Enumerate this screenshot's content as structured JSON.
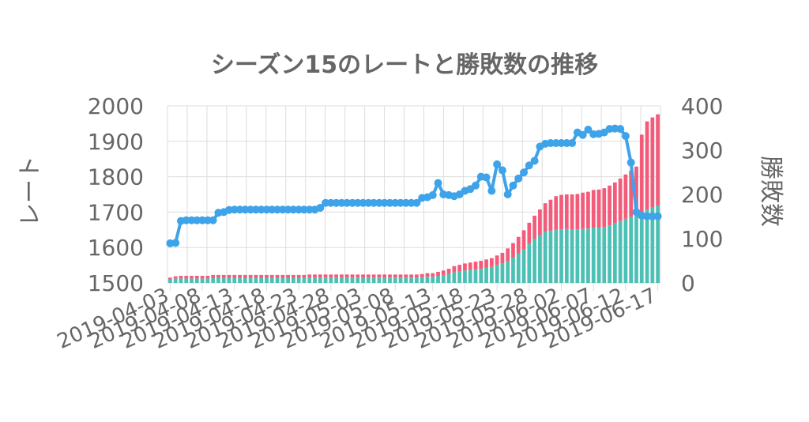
{
  "chart_data": {
    "type": "bar+line",
    "title": "シーズン15のレートと勝敗数の推移",
    "y_left_label": "レート",
    "y_right_label": "勝敗数",
    "y_left_range": [
      1500,
      2000
    ],
    "y_left_ticks": [
      1500,
      1600,
      1700,
      1800,
      1900,
      2000
    ],
    "y_right_range": [
      0,
      400
    ],
    "y_right_ticks": [
      0,
      100,
      200,
      300,
      400
    ],
    "grid": true,
    "bars_stacked": true,
    "x_tick_labels": [
      "2019-04-03",
      "2019-04-08",
      "2019-04-13",
      "2019-04-18",
      "2019-04-23",
      "2019-04-28",
      "2019-05-03",
      "2019-05-08",
      "2019-05-13",
      "2019-05-18",
      "2019-05-23",
      "2019-05-28",
      "2019-06-02",
      "2019-06-07",
      "2019-06-12",
      "2019-06-17"
    ],
    "colors": {
      "wins": "#4dc0b5",
      "losses": "#f25c7a",
      "rate": "#3ea3e8",
      "grid": "#dddddd",
      "text": "#666666"
    },
    "wins": [
      8,
      10,
      10,
      10,
      10,
      10,
      10,
      10,
      11,
      11,
      11,
      11,
      11,
      11,
      11,
      11,
      11,
      11,
      11,
      11,
      11,
      11,
      11,
      11,
      11,
      11,
      12,
      12,
      12,
      12,
      12,
      12,
      12,
      12,
      12,
      12,
      12,
      12,
      12,
      12,
      12,
      12,
      12,
      12,
      12,
      12,
      12,
      13,
      14,
      14,
      16,
      18,
      20,
      24,
      26,
      28,
      29,
      30,
      32,
      34,
      36,
      40,
      44,
      50,
      58,
      66,
      76,
      88,
      100,
      108,
      116,
      118,
      120,
      121,
      122,
      120,
      121,
      122,
      123,
      125,
      125,
      126,
      130,
      135,
      140,
      145,
      150,
      155,
      160,
      165,
      170,
      175
    ],
    "losses": [
      4,
      5,
      6,
      6,
      6,
      6,
      6,
      6,
      7,
      7,
      7,
      7,
      7,
      7,
      7,
      7,
      7,
      7,
      7,
      7,
      7,
      7,
      7,
      7,
      7,
      7,
      7,
      7,
      7,
      7,
      7,
      7,
      7,
      7,
      7,
      7,
      7,
      7,
      7,
      7,
      7,
      7,
      7,
      7,
      7,
      7,
      7,
      7,
      8,
      8,
      9,
      10,
      12,
      14,
      15,
      16,
      17,
      18,
      18,
      19,
      20,
      22,
      24,
      28,
      32,
      38,
      43,
      48,
      52,
      58,
      64,
      70,
      76,
      78,
      78,
      80,
      80,
      82,
      83,
      85,
      86,
      88,
      90,
      92,
      96,
      100,
      104,
      108,
      175,
      200,
      204,
      206
    ],
    "rate": [
      1612,
      1613,
      1675,
      1677,
      1677,
      1677,
      1677,
      1677,
      1677,
      1698,
      1700,
      1706,
      1707,
      1707,
      1707,
      1707,
      1707,
      1707,
      1707,
      1707,
      1707,
      1707,
      1707,
      1707,
      1707,
      1707,
      1707,
      1707,
      1712,
      1726,
      1726,
      1726,
      1726,
      1726,
      1726,
      1726,
      1726,
      1726,
      1726,
      1726,
      1726,
      1726,
      1726,
      1726,
      1726,
      1726,
      1726,
      1740,
      1742,
      1748,
      1782,
      1750,
      1748,
      1745,
      1750,
      1760,
      1765,
      1775,
      1800,
      1798,
      1760,
      1835,
      1818,
      1750,
      1775,
      1795,
      1812,
      1832,
      1845,
      1885,
      1893,
      1895,
      1895,
      1895,
      1895,
      1895,
      1925,
      1918,
      1933,
      1920,
      1921,
      1925,
      1935,
      1936,
      1935,
      1915,
      1840,
      1700,
      1690,
      1688,
      1688,
      1688
    ]
  }
}
